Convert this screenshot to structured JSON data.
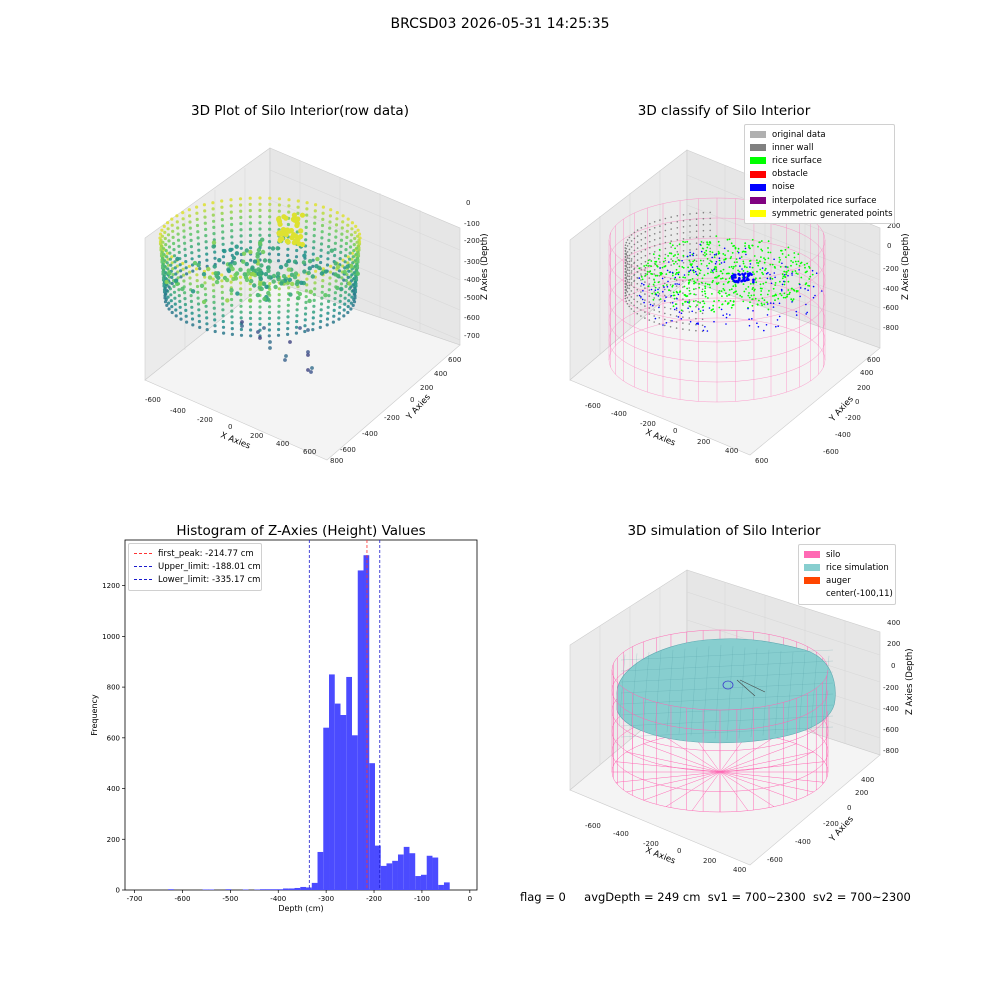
{
  "figure_title": "BRCSD03 2026-05-31 14:25:35",
  "footer": {
    "flag": "flag = 0",
    "avg_depth": "avgDepth = 249 cm",
    "sv1": "sv1 = 700~2300",
    "sv2": "sv2 = 700~2300"
  },
  "colors": {
    "histogram_bar": "#4b4bff",
    "first_peak_line": "#ff3333",
    "limit_lines": "#1a1acc",
    "silo_wire": "#ff69b4",
    "rice_simulation": "#87cecf",
    "auger": "#ff4500",
    "noise": "#0000ff",
    "rice_surface": "#00ff00",
    "inner_wall": "#808080",
    "obstacle": "#ff0000",
    "interpolated": "#800080",
    "symmetric": "#ffff00",
    "original": "#b0b0b0"
  },
  "chart_data": [
    {
      "id": "raw",
      "type": "scatter",
      "title": "3D Plot of Silo Interior(row data)",
      "xlabel": "X Axies",
      "ylabel": "Y Axies",
      "zlabel": "Z Axies (Depth)",
      "x_ticks": [
        "-600",
        "-400",
        "-200",
        "0",
        "200",
        "400",
        "600",
        "800"
      ],
      "y_ticks": [
        "-600",
        "-400",
        "-200",
        "0",
        "200",
        "400",
        "600"
      ],
      "z_ticks": [
        "0",
        "-100",
        "-200",
        "-300",
        "-400",
        "-500",
        "-600",
        "-700"
      ],
      "xlim": [
        -600,
        800
      ],
      "ylim": [
        -600,
        600
      ],
      "zlim": [
        -700,
        0
      ],
      "colormap": "viridis",
      "silo_radius": 400,
      "surface_depth_range": [
        -100,
        -500
      ],
      "outlier_depth_range": [
        -500,
        -700
      ]
    },
    {
      "id": "classify",
      "type": "scatter",
      "title": "3D classify of Silo Interior",
      "xlabel": "X Axies",
      "ylabel": "Y Axies",
      "zlabel": "Z Axies (Depth)",
      "x_ticks": [
        "-600",
        "-400",
        "-200",
        "0",
        "200",
        "400",
        "600"
      ],
      "y_ticks": [
        "-600",
        "-400",
        "-200",
        "0",
        "200",
        "400",
        "600"
      ],
      "z_ticks": [
        "200",
        "0",
        "-200",
        "-400",
        "-600",
        "-800"
      ],
      "xlim": [
        -600,
        600
      ],
      "ylim": [
        -600,
        600
      ],
      "zlim": [
        -800,
        200
      ],
      "legend": [
        {
          "label": "original data",
          "color": "#b0b0b0"
        },
        {
          "label": "inner wall",
          "color": "#808080"
        },
        {
          "label": "rice surface",
          "color": "#00ff00"
        },
        {
          "label": "obstacle",
          "color": "#ff0000"
        },
        {
          "label": "noise",
          "color": "#0000ff"
        },
        {
          "label": "interpolated rice surface",
          "color": "#800080"
        },
        {
          "label": "symmetric generated points",
          "color": "#ffff00"
        }
      ]
    },
    {
      "id": "histogram",
      "type": "bar",
      "title": "Histogram of Z-Axies (Height) Values",
      "xlabel": "Depth (cm)",
      "ylabel": "Frequency",
      "xlim": [
        -720,
        15
      ],
      "ylim": [
        0,
        1380
      ],
      "x_ticks": [
        -700,
        -600,
        -500,
        -400,
        -300,
        -200,
        -100,
        0
      ],
      "y_ticks": [
        0,
        200,
        400,
        600,
        800,
        1000,
        1200
      ],
      "bin_width": 12,
      "bins": [
        {
          "x": -630,
          "count": 3
        },
        {
          "x": -558,
          "count": 2
        },
        {
          "x": -546,
          "count": 2
        },
        {
          "x": -510,
          "count": 3
        },
        {
          "x": -474,
          "count": 2
        },
        {
          "x": -450,
          "count": 2
        },
        {
          "x": -438,
          "count": 3
        },
        {
          "x": -426,
          "count": 3
        },
        {
          "x": -414,
          "count": 3
        },
        {
          "x": -402,
          "count": 3
        },
        {
          "x": -390,
          "count": 6
        },
        {
          "x": -378,
          "count": 6
        },
        {
          "x": -366,
          "count": 8
        },
        {
          "x": -354,
          "count": 12
        },
        {
          "x": -342,
          "count": 10
        },
        {
          "x": -330,
          "count": 28
        },
        {
          "x": -318,
          "count": 150
        },
        {
          "x": -306,
          "count": 640
        },
        {
          "x": -294,
          "count": 850
        },
        {
          "x": -282,
          "count": 735
        },
        {
          "x": -270,
          "count": 690
        },
        {
          "x": -258,
          "count": 840
        },
        {
          "x": -246,
          "count": 610
        },
        {
          "x": -234,
          "count": 1260
        },
        {
          "x": -222,
          "count": 1320
        },
        {
          "x": -210,
          "count": 500
        },
        {
          "x": -198,
          "count": 175
        },
        {
          "x": -186,
          "count": 95
        },
        {
          "x": -174,
          "count": 105
        },
        {
          "x": -162,
          "count": 115
        },
        {
          "x": -150,
          "count": 140
        },
        {
          "x": -138,
          "count": 170
        },
        {
          "x": -126,
          "count": 145
        },
        {
          "x": -114,
          "count": 55
        },
        {
          "x": -102,
          "count": 60
        },
        {
          "x": -90,
          "count": 135
        },
        {
          "x": -78,
          "count": 128
        },
        {
          "x": -66,
          "count": 20
        },
        {
          "x": -54,
          "count": 30
        }
      ],
      "vlines": [
        {
          "label": "first_peak: -214.77 cm",
          "x": -214.77,
          "color": "#ff3333"
        },
        {
          "label": "Upper_limit: -188.01 cm",
          "x": -188.01,
          "color": "#1a1acc"
        },
        {
          "label": "Lower_limit: -335.17 cm",
          "x": -335.17,
          "color": "#1a1acc"
        }
      ]
    },
    {
      "id": "simulation",
      "type": "surface",
      "title": "3D simulation of Silo Interior",
      "xlabel": "X Axies",
      "ylabel": "Y Axies",
      "zlabel": "Z Axies (Depth)",
      "x_ticks": [
        "-600",
        "-400",
        "-200",
        "0",
        "200",
        "400"
      ],
      "y_ticks": [
        "-600",
        "-400",
        "-200",
        "0",
        "200",
        "400",
        "600"
      ],
      "z_ticks": [
        "400",
        "200",
        "0",
        "-200",
        "-400",
        "-600",
        "-800"
      ],
      "xlim": [
        -600,
        400
      ],
      "ylim": [
        -600,
        600
      ],
      "zlim": [
        -800,
        400
      ],
      "legend": [
        {
          "label": "silo",
          "color": "#ff69b4"
        },
        {
          "label": "rice simulation",
          "color": "#87cecf"
        },
        {
          "label": "auger",
          "color": "#ff4500"
        },
        {
          "label": "center(-100,11)",
          "color": ""
        }
      ]
    }
  ]
}
